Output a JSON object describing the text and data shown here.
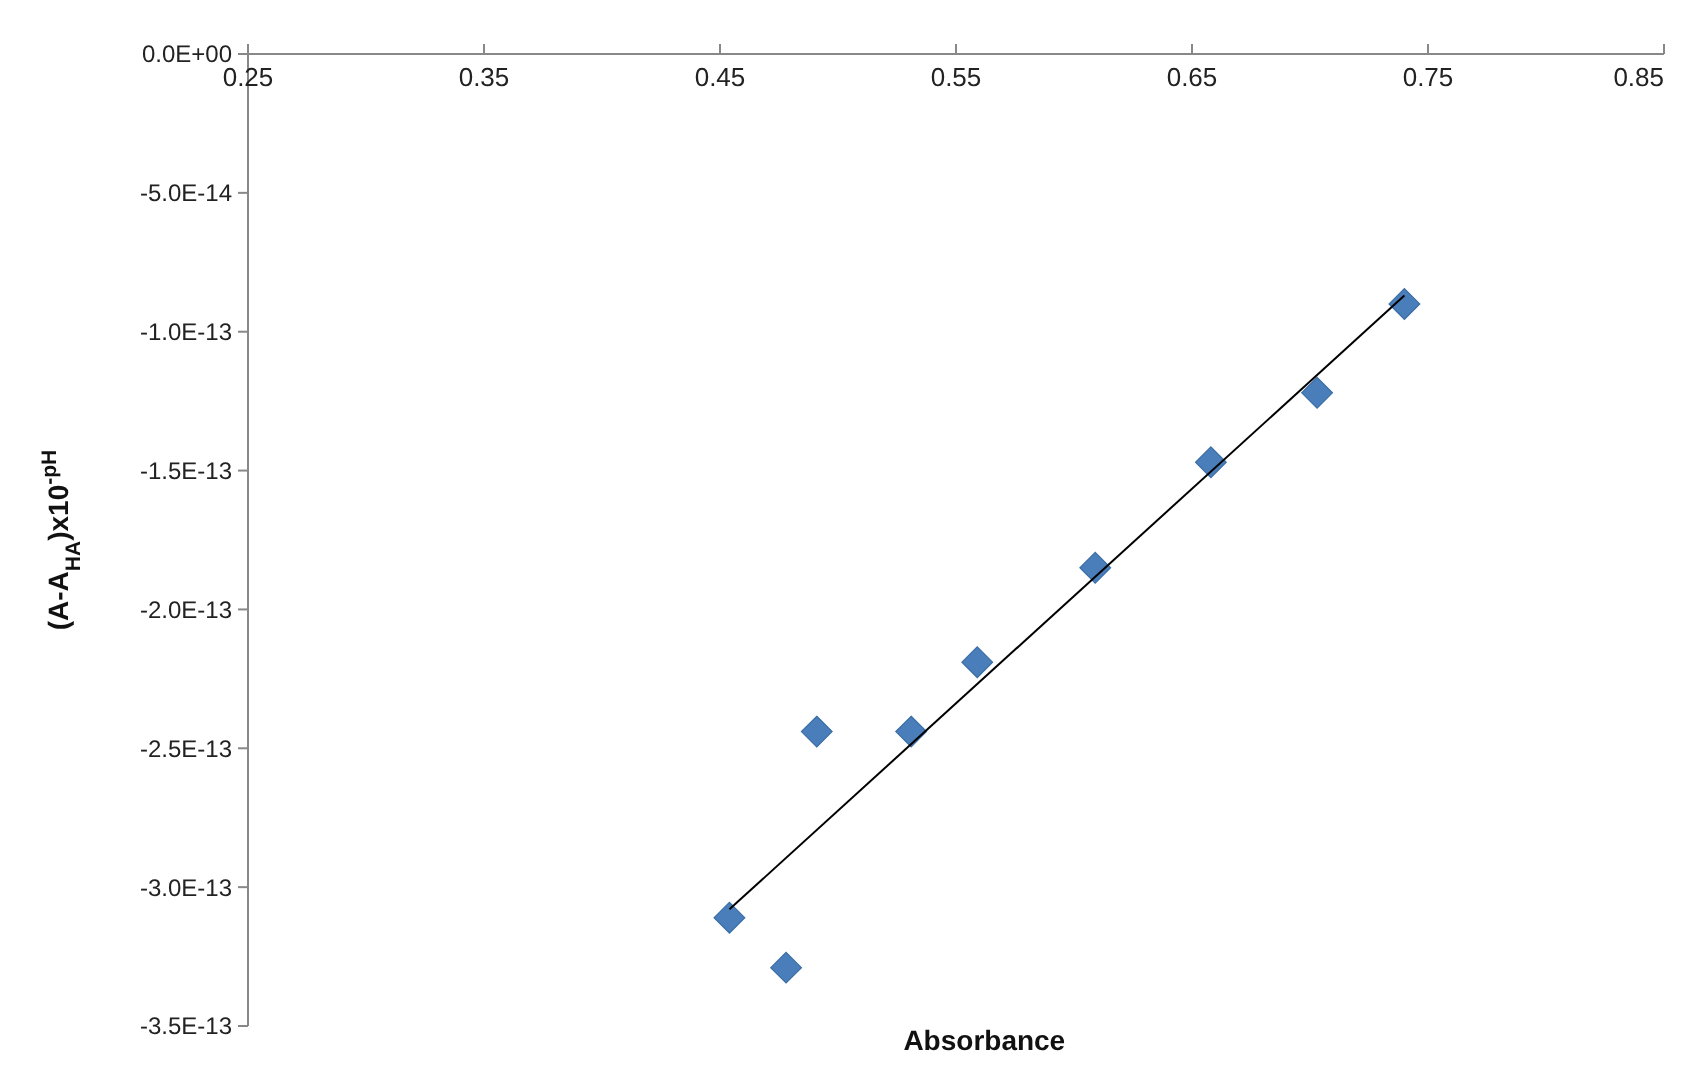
{
  "chart_data": {
    "type": "scatter",
    "xlabel": "Absorbance",
    "ylabel": "(A-A$_{HA}$)x10$^{-pH}$",
    "marker": "diamond",
    "grid": false,
    "xlim": [
      0.25,
      0.85
    ],
    "xticks": [
      0.25,
      0.35,
      0.45,
      0.55,
      0.65,
      0.75,
      0.85
    ],
    "ylim": [
      -3.5e-13,
      0
    ],
    "yticks": [
      {
        "value": 0,
        "label": "0.0E+00"
      },
      {
        "value": -5e-14,
        "label": "-5.0E-14"
      },
      {
        "value": -1e-13,
        "label": "-1.0E-13"
      },
      {
        "value": -1.5e-13,
        "label": "-1.5E-13"
      },
      {
        "value": -2e-13,
        "label": "-2.0E-13"
      },
      {
        "value": -2.5e-13,
        "label": "-2.5E-13"
      },
      {
        "value": -3e-13,
        "label": "-3.0E-13"
      },
      {
        "value": -3.5e-13,
        "label": "-3.5E-13"
      }
    ],
    "series": [
      {
        "color": "#4a7ebb",
        "x": [
          0.454,
          0.478,
          0.491,
          0.531,
          0.559,
          0.609,
          0.658,
          0.703,
          0.74
        ],
        "values": [
          -3.11e-13,
          -3.29e-13,
          -2.44e-13,
          -2.44e-13,
          -2.19e-13,
          -1.85e-13,
          -1.47e-13,
          -1.22e-13,
          -9e-14
        ]
      },
      {
        "type": "line",
        "color": "#000000",
        "marker": "none",
        "x": [
          0.454,
          0.74
        ],
        "values": [
          -3.08e-13,
          -8.7e-14
        ]
      }
    ]
  }
}
